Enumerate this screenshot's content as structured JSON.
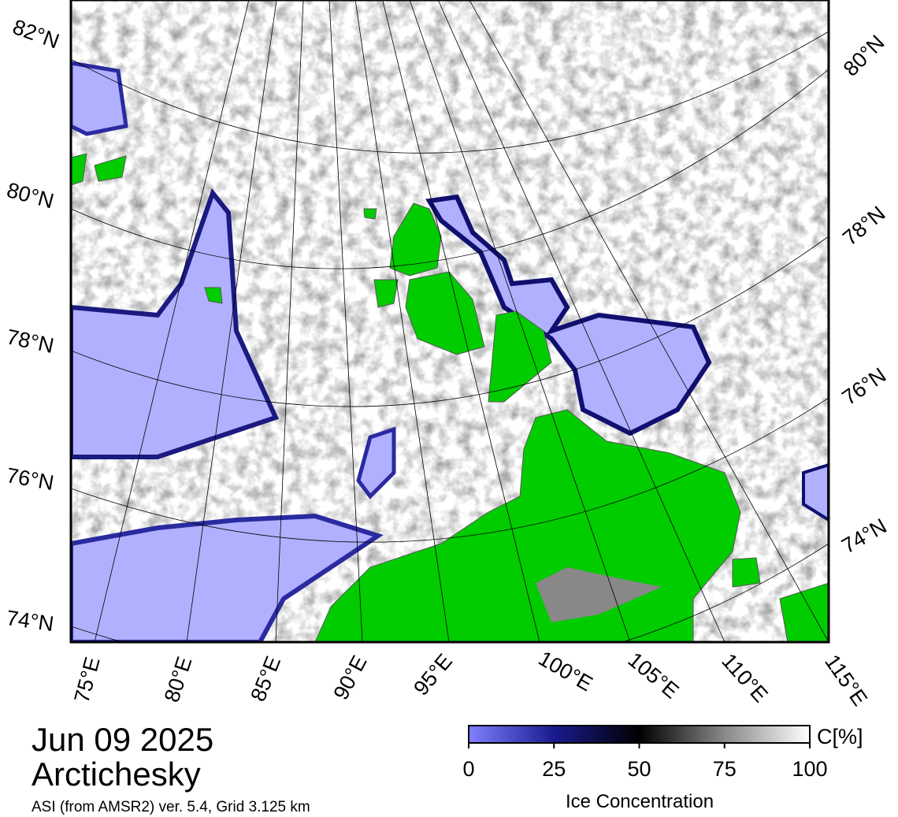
{
  "title": "Jun 09 2025",
  "region": "Arctichesky",
  "source": "ASI (from AMSR2) ver. 5.4,  Grid 3.125 km",
  "longitude_labels": [
    "75°E",
    "80°E",
    "85°E",
    "90°E",
    "95°E",
    "100°E",
    "105°E",
    "110°E",
    "115°E"
  ],
  "latitude_labels_left": [
    "82°N",
    "80°N",
    "78°N",
    "76°N",
    "74°N"
  ],
  "latitude_labels_right": [
    "80°N",
    "78°N",
    "76°N",
    "74°N"
  ],
  "colorbar": {
    "title": "Ice Concentration",
    "unit": "C[%]",
    "lim": [
      0,
      100
    ],
    "ticks": [
      0,
      25,
      50,
      75,
      100
    ]
  }
}
